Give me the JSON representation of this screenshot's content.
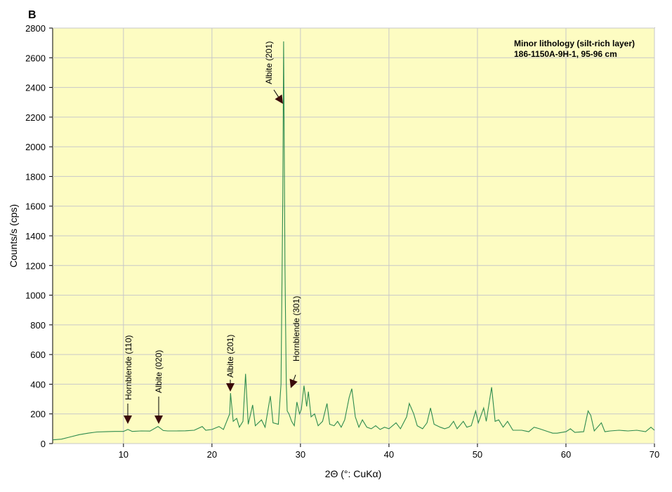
{
  "chart_data": {
    "type": "line",
    "panel_label": "B",
    "title_lines": [
      "Minor lithology (silt-rich layer)",
      "186-1150A-9H-1, 95-96 cm"
    ],
    "x_label": "2Θ (°: CuKα)",
    "y_label": "Counts/s (cps)",
    "xlim": [
      2,
      70
    ],
    "xticks": [
      10,
      20,
      30,
      40,
      50,
      60,
      70
    ],
    "ylim": [
      0,
      2800
    ],
    "yticks": [
      0,
      200,
      400,
      600,
      800,
      1000,
      1200,
      1400,
      1600,
      1800,
      2000,
      2200,
      2400,
      2600,
      2800
    ],
    "grid": true,
    "background": "#fdfcc2",
    "annotations": [
      {
        "text": "Hornblende (110)"
      },
      {
        "text": "Albite (020)"
      },
      {
        "text": "Albite (201)"
      },
      {
        "text": "Albite (201)"
      },
      {
        "text": "Hornblende (301)"
      }
    ],
    "series": [
      {
        "color": "#2e8b4e",
        "x": [
          2,
          3,
          4,
          5,
          6,
          7,
          8,
          9,
          10,
          10.5,
          11,
          12,
          13,
          13.9,
          14.5,
          15,
          16,
          17,
          18,
          18.9,
          19.3,
          20,
          20.8,
          21.3,
          22,
          22.1,
          22.4,
          22.8,
          23.1,
          23.5,
          23.8,
          24.1,
          24.6,
          24.9,
          25.6,
          26,
          26.6,
          26.9,
          27.5,
          27.8,
          28.0,
          28.1,
          28.25,
          28.4,
          28.5,
          28.7,
          29,
          29.3,
          29.6,
          29.9,
          30.1,
          30.4,
          30.7,
          30.9,
          31.2,
          31.6,
          32,
          32.5,
          33,
          33.3,
          33.8,
          34.2,
          34.6,
          35,
          35.5,
          35.8,
          36.2,
          36.6,
          37,
          37.5,
          38,
          38.5,
          39,
          39.5,
          40,
          40.8,
          41.3,
          42,
          42.3,
          42.8,
          43.2,
          43.8,
          44.3,
          44.7,
          45.1,
          45.8,
          46.3,
          46.8,
          47.3,
          47.7,
          48.4,
          48.8,
          49.3,
          49.8,
          50.1,
          50.7,
          51,
          51.6,
          52,
          52.4,
          52.9,
          53.4,
          54,
          55,
          55.8,
          56.4,
          57,
          58,
          58.5,
          59,
          60,
          60.5,
          61,
          62,
          62.5,
          62.8,
          63.2,
          64,
          64.4,
          65,
          66,
          67,
          68,
          69,
          69.6,
          70
        ],
        "values": [
          25,
          30,
          45,
          60,
          70,
          78,
          80,
          82,
          82,
          95,
          82,
          85,
          84,
          115,
          88,
          85,
          85,
          86,
          90,
          115,
          90,
          95,
          115,
          95,
          200,
          340,
          150,
          170,
          110,
          150,
          470,
          130,
          260,
          120,
          160,
          110,
          320,
          140,
          130,
          400,
          1650,
          2710,
          1200,
          400,
          220,
          200,
          150,
          120,
          280,
          200,
          230,
          390,
          250,
          350,
          180,
          200,
          120,
          150,
          270,
          130,
          120,
          150,
          110,
          160,
          310,
          370,
          180,
          110,
          160,
          110,
          100,
          120,
          95,
          110,
          100,
          140,
          100,
          180,
          270,
          200,
          120,
          100,
          140,
          240,
          130,
          110,
          100,
          110,
          150,
          100,
          150,
          110,
          120,
          220,
          140,
          240,
          150,
          380,
          150,
          160,
          110,
          150,
          90,
          90,
          80,
          110,
          100,
          80,
          70,
          70,
          80,
          100,
          75,
          80,
          220,
          190,
          85,
          140,
          80,
          85,
          90,
          85,
          90,
          80,
          110,
          90
        ]
      }
    ]
  }
}
